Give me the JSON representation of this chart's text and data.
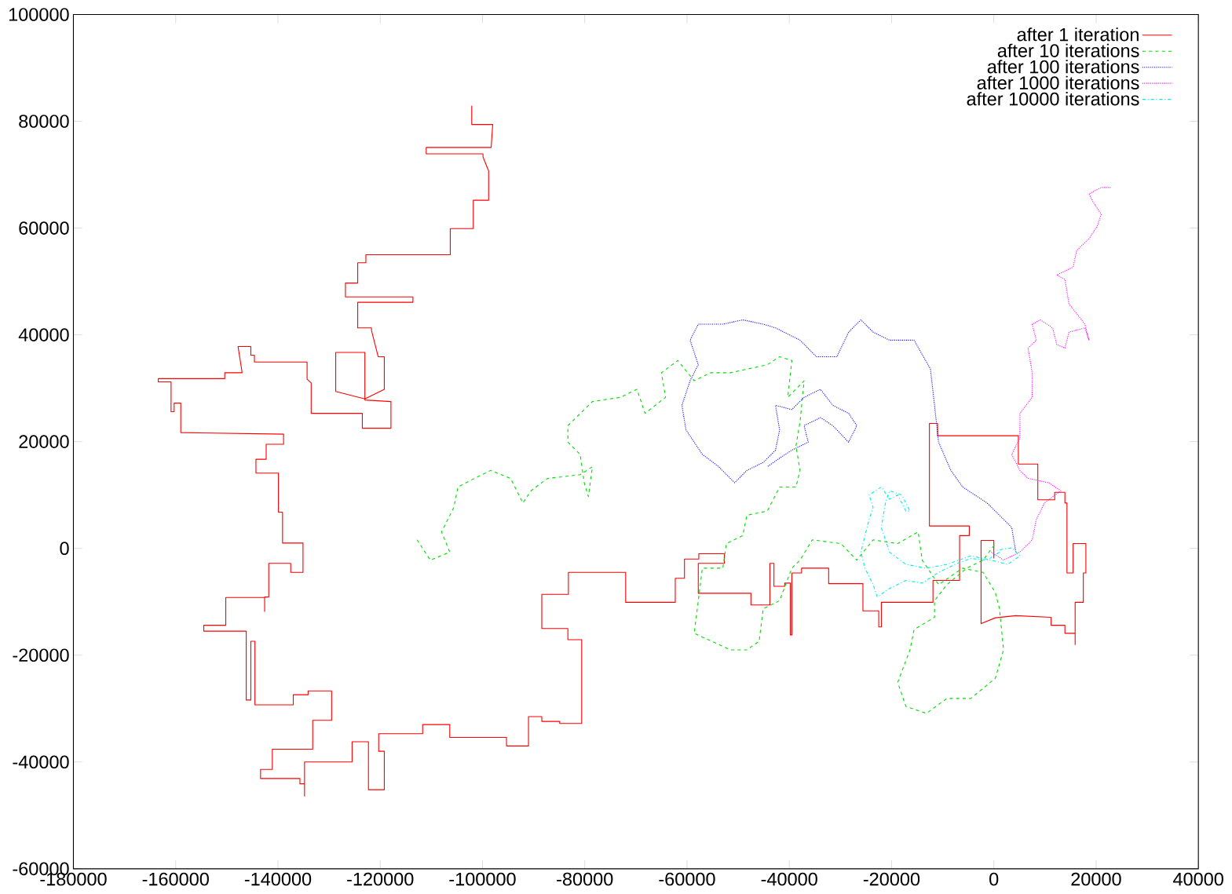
{
  "chart_data": {
    "type": "line",
    "xlim": [
      -180000,
      40000
    ],
    "ylim": [
      -60000,
      100000
    ],
    "xticks": [
      -180000,
      -160000,
      -140000,
      -120000,
      -100000,
      -80000,
      -60000,
      -40000,
      -20000,
      0,
      20000,
      40000
    ],
    "yticks": [
      -60000,
      -40000,
      -20000,
      0,
      20000,
      40000,
      60000,
      80000,
      100000
    ],
    "grid": false,
    "legend": "top right",
    "series": [
      {
        "name": "after 1 iteration",
        "color": "#ff0000",
        "line_style": "solid",
        "x": [
          -102100,
          -102100,
          -98000,
          -98300,
          -111000,
          -111000,
          -99900,
          -99900,
          -98800,
          -98800,
          -101800,
          -101800,
          -106300,
          -106300,
          -122800,
          -122800,
          -124400,
          -124400,
          -126800,
          -126800,
          -113600,
          -113600,
          -124400,
          -124400,
          -121700,
          -121700,
          -120400,
          -119200,
          -119200,
          -123000,
          -128700,
          -128700,
          -123000,
          -123000,
          -117900,
          -117900,
          -123500,
          -123500,
          -133500,
          -133500,
          -134300,
          -134300,
          -144600,
          -144600,
          -145300,
          -145300,
          -147800,
          -147000,
          -150400,
          -150400,
          -163400,
          -163400,
          -160900,
          -160900,
          -160300,
          -160300,
          -159000,
          -159000,
          -138900,
          -138900,
          -142300,
          -142300,
          -144300,
          -144300,
          -139900,
          -139900,
          -139100,
          -139100,
          -135100,
          -135100,
          -137500,
          -137500,
          -141800,
          -141800,
          -142600,
          -142600,
          -142600,
          -150200,
          -150200,
          -154500,
          -154500,
          -146200,
          -146200,
          -145300,
          -145300,
          -144500,
          -144500,
          -137000,
          -137000,
          -134100,
          -134100,
          -129500,
          -129500,
          -133200,
          -133200,
          -141100,
          -141100,
          -143400,
          -143400,
          -135700,
          -135700,
          -134800,
          -134800,
          -134800,
          -125500,
          -125500,
          -122300,
          -122300,
          -119200,
          -119200,
          -120300,
          -120300,
          -111700,
          -111700,
          -106400,
          -106400,
          -95300,
          -95300,
          -91000,
          -91000,
          -88400,
          -88400,
          -84900,
          -84900,
          -80600,
          -80600,
          -83300,
          -83300,
          -88400,
          -88400,
          -83200,
          -83200,
          -72000,
          -72000,
          -62300,
          -62300,
          -60500,
          -60500,
          -57700,
          -57700,
          -52700,
          -52700,
          -57800,
          -57800,
          -47500,
          -47500,
          -43800,
          -43800,
          -43000,
          -43000,
          -40900,
          -40900,
          -39800,
          -39800,
          -39500,
          -39500,
          -37600,
          -37600,
          -32300,
          -32300,
          -25600,
          -25600,
          -22500,
          -22500,
          -22000,
          -22000,
          -11900,
          -11900,
          -6700,
          -6700,
          -4800,
          -4800,
          -12600,
          -12600,
          -11000,
          -11000,
          4800,
          4800,
          8600,
          8600,
          11900,
          11900,
          13900,
          13900,
          14300,
          14300,
          15500,
          15500,
          18000,
          18000,
          17500,
          17500,
          15900,
          15900,
          15900,
          13900,
          13900,
          11200,
          11200,
          4300,
          300,
          -2500,
          -2500,
          0,
          0
        ],
        "values": [
          82900,
          79400,
          79400,
          75100,
          75100,
          73900,
          73900,
          73300,
          70700,
          65200,
          65200,
          59900,
          59900,
          55000,
          55000,
          53500,
          53500,
          49700,
          49700,
          47100,
          47100,
          46100,
          46100,
          41300,
          41300,
          40800,
          35900,
          35900,
          29800,
          28000,
          29400,
          36700,
          36700,
          27800,
          27500,
          22500,
          22500,
          25300,
          25300,
          31000,
          31700,
          34900,
          34900,
          36200,
          36200,
          37800,
          37800,
          32900,
          32900,
          31800,
          31800,
          31200,
          31200,
          25600,
          25600,
          27200,
          27200,
          21700,
          21400,
          19500,
          19500,
          16700,
          16700,
          14100,
          14100,
          6800,
          6800,
          1000,
          1000,
          -4500,
          -4500,
          -2800,
          -2800,
          -9100,
          -9100,
          -11800,
          -9200,
          -9200,
          -14400,
          -14400,
          -15500,
          -15500,
          -28400,
          -28400,
          -17400,
          -17400,
          -29300,
          -29300,
          -27400,
          -27400,
          -26700,
          -26700,
          -32200,
          -32200,
          -37600,
          -37600,
          -41400,
          -41400,
          -43100,
          -43100,
          -44100,
          -44100,
          -46400,
          -40000,
          -40000,
          -36200,
          -36200,
          -45200,
          -45200,
          -38000,
          -38000,
          -34700,
          -34700,
          -33000,
          -33000,
          -35400,
          -35400,
          -37000,
          -37000,
          -31500,
          -31500,
          -32400,
          -32400,
          -32800,
          -32800,
          -17100,
          -17100,
          -15000,
          -15000,
          -8600,
          -8600,
          -4500,
          -4500,
          -10100,
          -10100,
          -5600,
          -5600,
          -2000,
          -2000,
          -1000,
          -1000,
          -2800,
          -2800,
          -8400,
          -8400,
          -10600,
          -10600,
          -2800,
          -2800,
          -7100,
          -7100,
          -6500,
          -6500,
          -16200,
          -16200,
          -4600,
          -4600,
          -3700,
          -3700,
          -6600,
          -6600,
          -11700,
          -11700,
          -14700,
          -14700,
          -10100,
          -10100,
          -6000,
          -6000,
          2400,
          2400,
          4200,
          4200,
          23400,
          23400,
          21100,
          21100,
          15800,
          15800,
          9100,
          9100,
          10500,
          10500,
          8500,
          8500,
          -4600,
          -4600,
          900,
          900,
          -4600,
          -4600,
          -10100,
          -10100,
          -18000,
          -15900,
          -15900,
          -14400,
          -14400,
          -12900,
          -12600,
          -13000,
          -14100,
          1500,
          1500,
          -1900
        ]
      },
      {
        "name": "after 10 iterations",
        "color": "#00dd00",
        "line_style": "dashed",
        "x": [
          -112800,
          -110200,
          -106400,
          -108000,
          -105600,
          -104800,
          -101600,
          -98400,
          -94500,
          -92100,
          -90500,
          -87300,
          -80900,
          -78500,
          -79300,
          -80100,
          -80900,
          -83300,
          -83300,
          -78500,
          -73000,
          -69800,
          -68200,
          -64200,
          -65000,
          -61800,
          -58600,
          -55400,
          -51500,
          -44300,
          -41900,
          -39500,
          -40300,
          -37100,
          -37900,
          -38700,
          -37900,
          -38700,
          -41900,
          -44300,
          -48300,
          -49100,
          -52300,
          -53000,
          -57000,
          -58600,
          -51500,
          -48300,
          -45900,
          -45100,
          -41900,
          -39500,
          -37900,
          -35500,
          -29900,
          -26800,
          -23600,
          -18800,
          -14800,
          -14000,
          -10800,
          -6100,
          -2100,
          300,
          1100,
          1900,
          300,
          -4500,
          -9200,
          -13200,
          -17200,
          -18800,
          -16400,
          -15600,
          -11600,
          -11600,
          -9200,
          -5300,
          -2100,
          300
        ],
        "values": [
          1600,
          -2200,
          -700,
          3100,
          7700,
          11500,
          13100,
          14600,
          13100,
          8500,
          10800,
          13100,
          13800,
          15300,
          9700,
          12300,
          17600,
          19900,
          23000,
          27500,
          28300,
          29800,
          25300,
          28300,
          32900,
          35200,
          31400,
          32900,
          32900,
          34400,
          35900,
          35200,
          28300,
          31400,
          23700,
          19200,
          14600,
          11500,
          11500,
          7000,
          6200,
          2400,
          900,
          -3700,
          -3700,
          -15900,
          -19000,
          -19000,
          -17400,
          -11300,
          -9800,
          -3700,
          -2200,
          1600,
          900,
          -2200,
          1600,
          900,
          3100,
          -2200,
          -6800,
          -3700,
          -4500,
          -8300,
          -11300,
          -19000,
          -24300,
          -28100,
          -28100,
          -30900,
          -29600,
          -25100,
          -19000,
          -15200,
          -12900,
          -9800,
          -6800,
          -3700,
          -2200,
          900
        ]
      },
      {
        "name": "after 100 iterations",
        "color": "#0000ff",
        "line_style": "dotted",
        "x": [
          4300,
          3500,
          -1300,
          -6100,
          -8400,
          -10800,
          -11600,
          -12400,
          -15600,
          -20400,
          -23600,
          -26000,
          -28400,
          -30700,
          -34700,
          -37900,
          -42700,
          -45100,
          -49100,
          -53000,
          -57800,
          -59400,
          -57800,
          -59400,
          -61000,
          -60200,
          -57000,
          -53800,
          -50700,
          -48300,
          -45100,
          -42700,
          -41900,
          -42700,
          -39500,
          -37100,
          -33900,
          -31500,
          -28400,
          -26800,
          -28400,
          -31500,
          -33900,
          -37100,
          -36300,
          -39500,
          -41900,
          -44300
        ],
        "values": [
          -700,
          3900,
          8500,
          11500,
          14600,
          19900,
          26800,
          33600,
          39000,
          39000,
          40500,
          42800,
          40500,
          35900,
          35900,
          39000,
          41300,
          42000,
          42800,
          42000,
          42000,
          39000,
          34400,
          31400,
          26800,
          22200,
          17600,
          15300,
          12300,
          14600,
          16100,
          18400,
          22200,
          26800,
          26000,
          28300,
          29800,
          26800,
          25300,
          23000,
          19900,
          23000,
          24500,
          23000,
          19900,
          18400,
          16900,
          15300
        ]
      },
      {
        "name": "after 1000 iterations",
        "color": "#ff00ff",
        "line_style": "dotted",
        "x": [
          -500,
          1900,
          5100,
          7500,
          8300,
          9900,
          13100,
          10700,
          6700,
          5100,
          3500,
          5100,
          5100,
          7500,
          7500,
          6700,
          8300,
          7500,
          9100,
          11500,
          12300,
          13900,
          14700,
          17800,
          18600,
          17800,
          14700,
          13900,
          12300,
          15500,
          16200,
          18600,
          20200,
          21000,
          19400,
          18600,
          21000,
          22900
        ],
        "values": [
          -700,
          -2200,
          -700,
          1600,
          5400,
          8500,
          10800,
          12300,
          13100,
          14600,
          17600,
          20700,
          25300,
          28300,
          32900,
          37500,
          39000,
          42000,
          42800,
          41300,
          38200,
          37500,
          40500,
          41300,
          39000,
          42000,
          45800,
          50400,
          51200,
          52700,
          55800,
          58000,
          60300,
          62600,
          64900,
          66400,
          67600,
          67600
        ]
      },
      {
        "name": "after 10000 iterations",
        "color": "#00eeee",
        "line_style": "dashdot",
        "x": [
          1100,
          -1300,
          -4500,
          -7600,
          -10800,
          -14000,
          -17200,
          -20400,
          -22800,
          -23600,
          -25200,
          -26000,
          -25200,
          -24400,
          -23600,
          -24400,
          -22000,
          -20400,
          -18800,
          -17200,
          -16400,
          -18000,
          -20400,
          -21200,
          -22000,
          -20400,
          -17200,
          -13200,
          -9200,
          -4500,
          -500,
          2700,
          5100,
          3500,
          300
        ],
        "values": [
          -700,
          -2200,
          -1900,
          -3000,
          -4500,
          -6500,
          -6000,
          -7500,
          -9100,
          -6800,
          -3700,
          -700,
          2400,
          5400,
          7700,
          10000,
          11500,
          9200,
          10000,
          7000,
          7000,
          10000,
          10800,
          8500,
          3900,
          -700,
          -3000,
          -3700,
          -3000,
          -1400,
          -2200,
          -3000,
          -1400,
          100,
          -400
        ]
      }
    ]
  }
}
